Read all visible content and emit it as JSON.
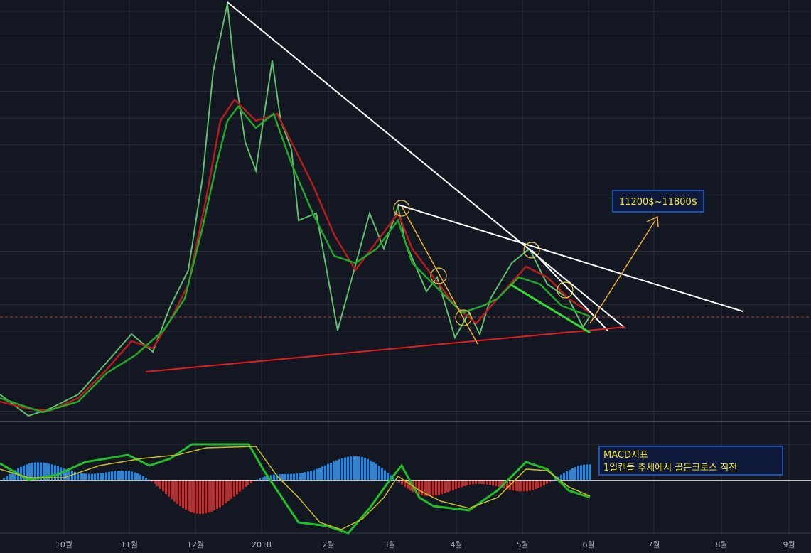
{
  "x_axis": {
    "labels": [
      "10월",
      "11월",
      "12월",
      "2018",
      "2월",
      "3월",
      "4월",
      "5월",
      "6월",
      "7월",
      "8월",
      "9월"
    ]
  },
  "annotations": {
    "target": "11200$~11800$",
    "macd_note": {
      "title": "MACD지표",
      "text": "1일캔들 추세에서 골든크로스 직전"
    }
  }
}
